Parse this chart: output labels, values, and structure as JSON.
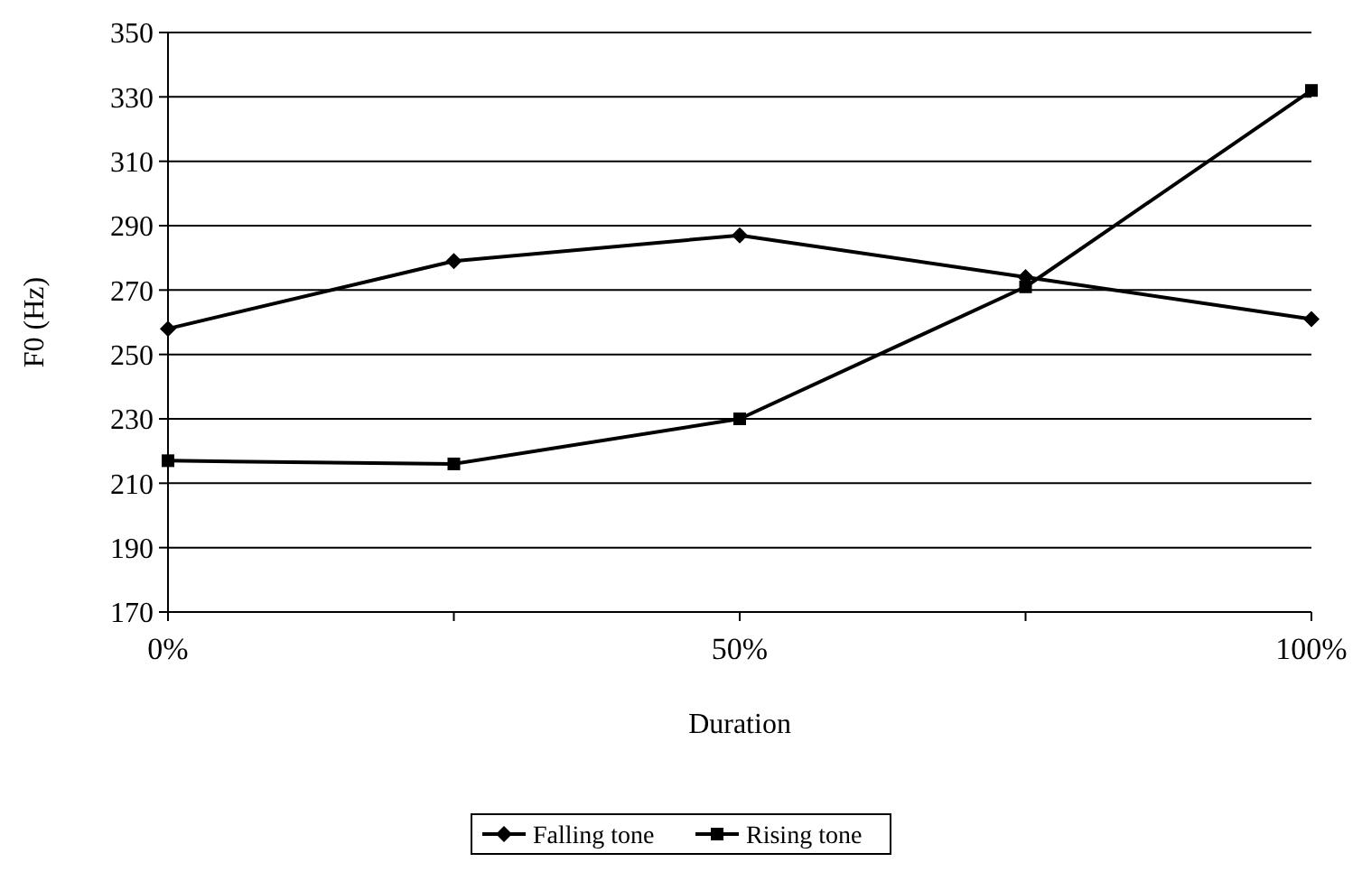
{
  "chart_data": {
    "type": "line",
    "xlabel": "Duration",
    "ylabel": "F0 (Hz)",
    "x": [
      0,
      25,
      50,
      75,
      100
    ],
    "xlim": [
      0,
      100
    ],
    "xticks": [
      {
        "value": 0,
        "label": "0%"
      },
      {
        "value": 25,
        "label": null
      },
      {
        "value": 50,
        "label": "50%"
      },
      {
        "value": 75,
        "label": null
      },
      {
        "value": 100,
        "label": "100%"
      }
    ],
    "ylim": [
      170,
      350
    ],
    "yticks": [
      170,
      190,
      210,
      230,
      250,
      270,
      290,
      310,
      330,
      350
    ],
    "grid": "y",
    "legend": "bottom",
    "series": [
      {
        "name": "Falling tone",
        "color": "#000000",
        "marker": "diamond",
        "values": [
          258,
          279,
          287,
          274,
          261
        ]
      },
      {
        "name": "Rising tone",
        "color": "#000000",
        "marker": "square",
        "values": [
          217,
          216,
          230,
          271,
          332
        ]
      }
    ]
  }
}
